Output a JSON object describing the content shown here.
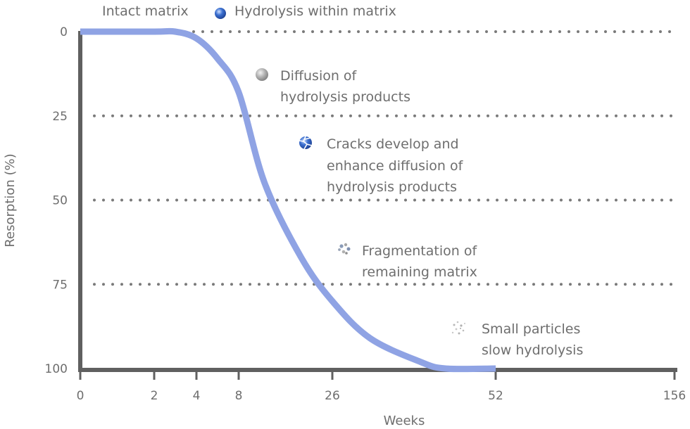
{
  "chart_data": {
    "type": "line",
    "title": "",
    "xlabel": "Weeks",
    "ylabel": "Resorption (%)",
    "x_ticks": [
      "0",
      "2",
      "4",
      "8",
      "26",
      "52",
      "156"
    ],
    "y_ticks": [
      "0",
      "25",
      "50",
      "75",
      "100"
    ],
    "ylim": [
      0,
      100
    ],
    "grid": "dotted horizontal lines at 0, 25, 50 and 75",
    "series": [
      {
        "name": "",
        "color": "#8fa3e4",
        "points": [
          {
            "x": 0,
            "y": 0
          },
          {
            "x": 2,
            "y": 0
          },
          {
            "x": 3,
            "y": 0
          },
          {
            "x": 4,
            "y": 2
          },
          {
            "x": 6,
            "y": 8
          },
          {
            "x": 8,
            "y": 18
          },
          {
            "x": 13,
            "y": 45
          },
          {
            "x": 20,
            "y": 67
          },
          {
            "x": 26,
            "y": 80
          },
          {
            "x": 32,
            "y": 91
          },
          {
            "x": 40,
            "y": 98
          },
          {
            "x": 44,
            "y": 100
          },
          {
            "x": 52,
            "y": 100
          }
        ]
      }
    ],
    "header_labels": [
      "Intact matrix",
      "Hydrolysis within matrix"
    ],
    "annotations": [
      {
        "id": "diffusion",
        "icon": "grey-sphere-icon",
        "lines": [
          "Diffusion of",
          "hydrolysis products"
        ]
      },
      {
        "id": "cracks",
        "icon": "cracked-sphere-icon",
        "lines": [
          "Cracks develop and",
          "enhance diffusion of",
          "hydrolysis products"
        ]
      },
      {
        "id": "fragmentation",
        "icon": "fragment-cluster-icon",
        "lines": [
          "Fragmentation of",
          "remaining matrix"
        ]
      },
      {
        "id": "particles",
        "icon": "particles-icon",
        "lines": [
          "Small particles",
          "slow hydrolysis"
        ]
      }
    ]
  }
}
